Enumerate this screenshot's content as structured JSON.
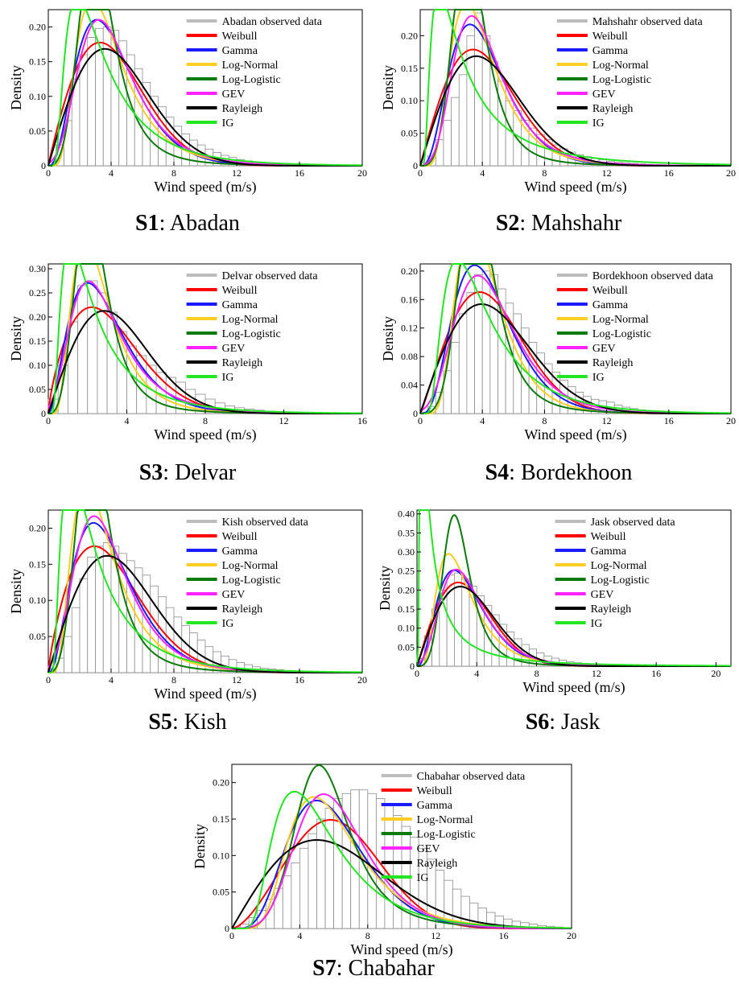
{
  "distributions": [
    {
      "name": "Weibull",
      "color": "#ff0000"
    },
    {
      "name": "Gamma",
      "color": "#1a1aff"
    },
    {
      "name": "Log-Normal",
      "color": "#ffcc22"
    },
    {
      "name": "Log-Logistic",
      "color": "#0a7a0a"
    },
    {
      "name": "GEV",
      "color": "#ff22ff"
    },
    {
      "name": "Rayleigh",
      "color": "#000000"
    },
    {
      "name": "IG",
      "color": "#22e622"
    }
  ],
  "observed_color": "#bdbdbd",
  "bar_edge_color": "#8c8c8c",
  "chart_data": [
    {
      "type": "line",
      "station_id": "S1",
      "station": ": Abadan",
      "xlabel": "Wind speed (m/s)",
      "ylabel": "Density",
      "xlim": [
        0,
        20
      ],
      "ylim": [
        0,
        0.225
      ],
      "xticks": [
        0,
        4,
        8,
        12,
        16,
        20
      ],
      "yticks": [
        0,
        0.05,
        0.1,
        0.15,
        0.2
      ],
      "ytick_labels": [
        "0",
        "0.05",
        "0.10",
        "0.15",
        "0.20"
      ],
      "legend_observed": "Abadan observed data",
      "legend_placement": "top-right",
      "observed_bins": {
        "width": 0.5,
        "values": [
          0.005,
          0.03,
          0.065,
          0.125,
          0.16,
          0.185,
          0.198,
          0.2,
          0.195,
          0.18,
          0.16,
          0.14,
          0.12,
          0.1,
          0.085,
          0.07,
          0.057,
          0.046,
          0.037,
          0.03,
          0.024,
          0.019,
          0.015,
          0.012,
          0.009,
          0.007,
          0.005,
          0.004,
          0.003,
          0.002,
          0.0015,
          0.001,
          0.0008,
          0.0006,
          0.0004,
          0.0003,
          0.0002,
          0.0001,
          0.0001,
          0.0001
        ]
      },
      "fits": [
        {
          "name": "Weibull",
          "dist": "weibull",
          "params": [
            1.95,
            4.75
          ]
        },
        {
          "name": "Gamma",
          "dist": "gamma",
          "params": [
            3.8,
            1.1
          ]
        },
        {
          "name": "Log-Normal",
          "dist": "lognormal",
          "params": [
            1.3,
            0.52
          ]
        },
        {
          "name": "Log-Logistic",
          "dist": "loglogistic",
          "params": [
            3.9,
            3.3
          ]
        },
        {
          "name": "GEV",
          "dist": "gev",
          "params": [
            3.3,
            1.75,
            0.05
          ]
        },
        {
          "name": "Rayleigh",
          "dist": "rayleigh",
          "params": [
            3.6
          ]
        },
        {
          "name": "IG",
          "dist": "ig",
          "params": [
            4.0,
            7.0
          ]
        }
      ]
    },
    {
      "type": "line",
      "station_id": "S2",
      "station": ": Mahshahr",
      "xlabel": "Wind speed (m/s)",
      "ylabel": "Density",
      "xlim": [
        0,
        20
      ],
      "ylim": [
        0,
        0.24
      ],
      "xticks": [
        0,
        4,
        8,
        12,
        16,
        20
      ],
      "yticks": [
        0,
        0.05,
        0.1,
        0.15,
        0.2
      ],
      "ytick_labels": [
        "0",
        "0.05",
        "0.10",
        "0.15",
        "0.20"
      ],
      "legend_observed": "Mahshahr observed data",
      "legend_placement": "top-right",
      "observed_bins": {
        "width": 0.5,
        "values": [
          0.005,
          0.015,
          0.04,
          0.07,
          0.105,
          0.14,
          0.2,
          0.235,
          0.2,
          0.16,
          0.13,
          0.1,
          0.085,
          0.07,
          0.058,
          0.048,
          0.04,
          0.032,
          0.026,
          0.021,
          0.017,
          0.014,
          0.011,
          0.009,
          0.007,
          0.0055,
          0.0045,
          0.0035,
          0.0028,
          0.0022,
          0.0017,
          0.0013,
          0.001,
          0.0008,
          0.0006,
          0.0004,
          0.0003,
          0.0002,
          0.0001,
          0.0001
        ]
      },
      "fits": [
        {
          "name": "Weibull",
          "dist": "weibull",
          "params": [
            2.0,
            4.8
          ]
        },
        {
          "name": "Gamma",
          "dist": "gamma",
          "params": [
            4.2,
            1.0
          ]
        },
        {
          "name": "Log-Normal",
          "dist": "lognormal",
          "params": [
            1.32,
            0.48
          ]
        },
        {
          "name": "Log-Logistic",
          "dist": "loglogistic",
          "params": [
            4.3,
            3.35
          ]
        },
        {
          "name": "GEV",
          "dist": "gev",
          "params": [
            3.4,
            1.6,
            0.06
          ]
        },
        {
          "name": "Rayleigh",
          "dist": "rayleigh",
          "params": [
            3.6
          ]
        },
        {
          "name": "IG",
          "dist": "ig",
          "params": [
            4.0,
            4.0
          ]
        }
      ]
    },
    {
      "type": "line",
      "station_id": "S3",
      "station": ": Delvar",
      "xlabel": "Wind speed (m/s)",
      "ylabel": "Density",
      "xlim": [
        0,
        16
      ],
      "ylim": [
        0,
        0.31
      ],
      "xticks": [
        0,
        4,
        8,
        12,
        16
      ],
      "yticks": [
        0,
        0.05,
        0.1,
        0.15,
        0.2,
        0.25,
        0.3
      ],
      "ytick_labels": [
        "0",
        "0.05",
        "0.10",
        "0.15",
        "0.20",
        "0.25",
        "0.30"
      ],
      "legend_observed": "Delvar observed data",
      "legend_placement": "top-right",
      "observed_bins": {
        "width": 0.5,
        "values": [
          0.03,
          0.1,
          0.19,
          0.265,
          0.275,
          0.25,
          0.21,
          0.17,
          0.14,
          0.12,
          0.1,
          0.085,
          0.075,
          0.065,
          0.05,
          0.04,
          0.03,
          0.022,
          0.016,
          0.012,
          0.009,
          0.007,
          0.005,
          0.004,
          0.003,
          0.002,
          0.0015,
          0.001,
          0.0008,
          0.0006,
          0.0004,
          0.0002
        ]
      },
      "fits": [
        {
          "name": "Weibull",
          "dist": "weibull",
          "params": [
            1.75,
            3.6
          ]
        },
        {
          "name": "Gamma",
          "dist": "gamma",
          "params": [
            3.0,
            1.0
          ]
        },
        {
          "name": "Log-Normal",
          "dist": "lognormal",
          "params": [
            0.9,
            0.52
          ]
        },
        {
          "name": "Log-Logistic",
          "dist": "loglogistic",
          "params": [
            3.8,
            2.35
          ]
        },
        {
          "name": "GEV",
          "dist": "gev",
          "params": [
            2.2,
            1.35,
            0.12
          ]
        },
        {
          "name": "Rayleigh",
          "dist": "rayleigh",
          "params": [
            2.85
          ]
        },
        {
          "name": "IG",
          "dist": "ig",
          "params": [
            2.8,
            4.0
          ]
        }
      ]
    },
    {
      "type": "line",
      "station_id": "S4",
      "station": ": Bordekhoon",
      "xlabel": "Wind speed (m/s)",
      "ylabel": "Density",
      "xlim": [
        0,
        20
      ],
      "ylim": [
        0,
        0.21
      ],
      "xticks": [
        0,
        4,
        8,
        12,
        16,
        20
      ],
      "yticks": [
        0,
        0.04,
        0.08,
        0.12,
        0.16,
        0.2
      ],
      "ytick_labels": [
        "0",
        "0.04",
        "0.08",
        "0.12",
        "0.16",
        "0.20"
      ],
      "legend_observed": "Bordekhoon observed data",
      "legend_placement": "top-right",
      "observed_bins": {
        "width": 0.5,
        "values": [
          0.002,
          0.01,
          0.03,
          0.06,
          0.1,
          0.14,
          0.17,
          0.195,
          0.2,
          0.195,
          0.175,
          0.155,
          0.14,
          0.12,
          0.1,
          0.085,
          0.07,
          0.058,
          0.047,
          0.038,
          0.03,
          0.024,
          0.02,
          0.018,
          0.016,
          0.012,
          0.009,
          0.007,
          0.005,
          0.004,
          0.003,
          0.002,
          0.0015,
          0.001,
          0.0008,
          0.0006,
          0.0004,
          0.0003,
          0.0002,
          0.0001
        ]
      },
      "fits": [
        {
          "name": "Weibull",
          "dist": "weibull",
          "params": [
            2.1,
            5.2
          ]
        },
        {
          "name": "Gamma",
          "dist": "gamma",
          "params": [
            4.5,
            1.0
          ]
        },
        {
          "name": "Log-Normal",
          "dist": "lognormal",
          "params": [
            1.38,
            0.42
          ]
        },
        {
          "name": "Log-Logistic",
          "dist": "loglogistic",
          "params": [
            4.5,
            3.85
          ]
        },
        {
          "name": "GEV",
          "dist": "gev",
          "params": [
            3.7,
            1.9,
            0.0
          ]
        },
        {
          "name": "Rayleigh",
          "dist": "rayleigh",
          "params": [
            3.95
          ]
        },
        {
          "name": "IG",
          "dist": "ig",
          "params": [
            4.5,
            10.0
          ]
        }
      ]
    },
    {
      "type": "line",
      "station_id": "S5",
      "station": ": Kish",
      "xlabel": "Wind speed (m/s)",
      "ylabel": "Density",
      "xlim": [
        0,
        20
      ],
      "ylim": [
        0,
        0.225
      ],
      "xticks": [
        0,
        4,
        8,
        12,
        16,
        20
      ],
      "yticks": [
        0.05,
        0.1,
        0.15,
        0.2
      ],
      "ytick_labels": [
        "0.05",
        "0.10",
        "0.15",
        "0.20"
      ],
      "legend_observed": "Kish observed data",
      "legend_placement": "top-right",
      "observed_bins": {
        "width": 0.5,
        "values": [
          0.005,
          0.02,
          0.05,
          0.09,
          0.13,
          0.16,
          0.175,
          0.18,
          0.175,
          0.165,
          0.155,
          0.145,
          0.135,
          0.12,
          0.105,
          0.09,
          0.077,
          0.065,
          0.055,
          0.045,
          0.036,
          0.029,
          0.023,
          0.018,
          0.014,
          0.011,
          0.008,
          0.006,
          0.005,
          0.004,
          0.003,
          0.002,
          0.0015,
          0.001,
          0.0008,
          0.0006,
          0.0004,
          0.0003,
          0.0002,
          0.0001
        ]
      },
      "fits": [
        {
          "name": "Weibull",
          "dist": "weibull",
          "params": [
            1.8,
            4.6
          ]
        },
        {
          "name": "Gamma",
          "dist": "gamma",
          "params": [
            3.4,
            1.2
          ]
        },
        {
          "name": "Log-Normal",
          "dist": "lognormal",
          "params": [
            1.18,
            0.55
          ]
        },
        {
          "name": "Log-Logistic",
          "dist": "loglogistic",
          "params": [
            3.8,
            3.1
          ]
        },
        {
          "name": "GEV",
          "dist": "gev",
          "params": [
            3.0,
            1.7,
            0.05
          ]
        },
        {
          "name": "Rayleigh",
          "dist": "rayleigh",
          "params": [
            3.75
          ]
        },
        {
          "name": "IG",
          "dist": "ig",
          "params": [
            3.5,
            5.0
          ]
        }
      ]
    },
    {
      "type": "line",
      "station_id": "S6",
      "station": ": Jask",
      "xlabel": "Wind speed (m/s)",
      "ylabel": "Density",
      "xlim": [
        0,
        21
      ],
      "ylim": [
        0,
        0.41
      ],
      "xticks": [
        0,
        4,
        8,
        12,
        16,
        20
      ],
      "yticks": [
        0,
        0.05,
        0.1,
        0.15,
        0.2,
        0.25,
        0.3,
        0.35,
        0.4
      ],
      "ytick_labels": [
        "0",
        "0.05",
        "0.10",
        "0.15",
        "0.20",
        "0.25",
        "0.30",
        "0.35",
        "0.40"
      ],
      "legend_observed": "Jask observed data",
      "legend_placement": "top-right",
      "observed_bins": {
        "width": 0.5,
        "values": [
          0.02,
          0.08,
          0.15,
          0.2,
          0.24,
          0.245,
          0.23,
          0.21,
          0.185,
          0.16,
          0.135,
          0.11,
          0.09,
          0.072,
          0.057,
          0.045,
          0.035,
          0.027,
          0.021,
          0.016,
          0.012,
          0.009,
          0.007,
          0.005,
          0.004,
          0.003,
          0.002,
          0.0015,
          0.001,
          0.0008,
          0.0006,
          0.0004,
          0.0003,
          0.0002,
          0.0001,
          0.0001,
          0.0001,
          0.0001,
          0.0001,
          0.0001,
          0.0001,
          0.0001
        ]
      },
      "fits": [
        {
          "name": "Weibull",
          "dist": "weibull",
          "params": [
            2.0,
            3.9
          ]
        },
        {
          "name": "Gamma",
          "dist": "gamma",
          "params": [
            3.6,
            0.95
          ]
        },
        {
          "name": "Log-Normal",
          "dist": "lognormal",
          "params": [
            1.05,
            0.55
          ]
        },
        {
          "name": "Log-Logistic",
          "dist": "loglogistic",
          "params": [
            4.2,
            2.8
          ]
        },
        {
          "name": "GEV",
          "dist": "gev",
          "params": [
            2.7,
            1.45,
            0.05
          ]
        },
        {
          "name": "Rayleigh",
          "dist": "rayleigh",
          "params": [
            2.9
          ]
        },
        {
          "name": "IG",
          "dist": "ig",
          "params": [
            2.5,
            1.0
          ]
        }
      ]
    },
    {
      "type": "line",
      "station_id": "S7",
      "station": ": Chabahar",
      "xlabel": "Wind speed (m/s)",
      "ylabel": "Density",
      "xlim": [
        0,
        20
      ],
      "ylim": [
        0,
        0.225
      ],
      "xticks": [
        0,
        4,
        8,
        12,
        16,
        20
      ],
      "yticks": [
        0,
        0.05,
        0.1,
        0.15,
        0.2
      ],
      "ytick_labels": [
        "0",
        "0.05",
        "0.10",
        "0.15",
        "0.20"
      ],
      "legend_observed": "Chabahar observed data",
      "legend_placement": "top-right",
      "observed_bins": {
        "width": 0.5,
        "values": [
          0.002,
          0.006,
          0.015,
          0.025,
          0.04,
          0.055,
          0.072,
          0.09,
          0.11,
          0.13,
          0.15,
          0.165,
          0.178,
          0.185,
          0.19,
          0.19,
          0.185,
          0.178,
          0.168,
          0.155,
          0.14,
          0.125,
          0.11,
          0.095,
          0.08,
          0.066,
          0.054,
          0.044,
          0.035,
          0.028,
          0.022,
          0.017,
          0.013,
          0.01,
          0.008,
          0.006,
          0.004,
          0.003,
          0.002,
          0.001
        ]
      },
      "fits": [
        {
          "name": "Weibull",
          "dist": "weibull",
          "params": [
            2.6,
            7.0
          ]
        },
        {
          "name": "Gamma",
          "dist": "gamma",
          "params": [
            6.0,
            1.0
          ]
        },
        {
          "name": "Log-Normal",
          "dist": "lognormal",
          "params": [
            1.75,
            0.42
          ]
        },
        {
          "name": "Log-Logistic",
          "dist": "loglogistic",
          "params": [
            4.8,
            5.6
          ]
        },
        {
          "name": "GEV",
          "dist": "gev",
          "params": [
            5.3,
            2.0,
            -0.05
          ]
        },
        {
          "name": "Rayleigh",
          "dist": "rayleigh",
          "params": [
            5.0
          ]
        },
        {
          "name": "IG",
          "dist": "ig",
          "params": [
            5.5,
            20.0
          ]
        }
      ]
    }
  ]
}
